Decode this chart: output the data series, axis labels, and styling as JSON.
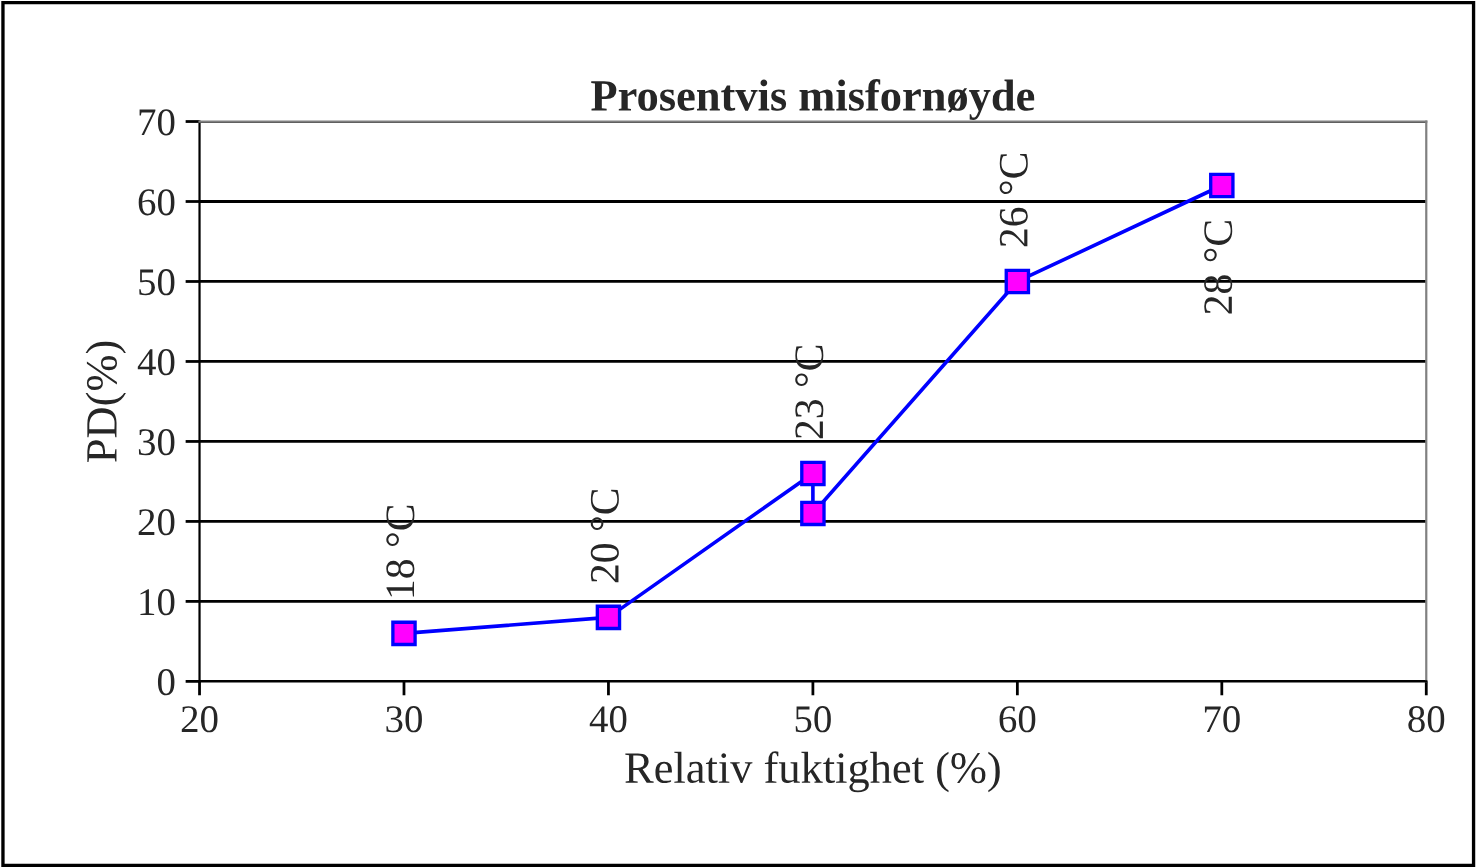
{
  "chart_data": {
    "type": "line",
    "title": "Prosentvis misfornøyde",
    "xlabel": "Relativ fuktighet (%)",
    "ylabel": "PD(%)",
    "xlim": [
      20,
      80
    ],
    "xticks": [
      20,
      30,
      40,
      50,
      60,
      70,
      80
    ],
    "ylim": [
      0,
      70
    ],
    "yticks": [
      0,
      10,
      20,
      30,
      40,
      50,
      60,
      70
    ],
    "grid": "y",
    "marker": "square",
    "line_style": "solid",
    "legend": false,
    "series": [
      {
        "color": "#0000ff",
        "x": [
          30,
          40,
          50,
          50,
          60,
          70
        ],
        "values": [
          6,
          8,
          26,
          21,
          50,
          62
        ]
      }
    ],
    "annotations": [
      {
        "text": "18 °C",
        "x": 30,
        "y": 6
      },
      {
        "text": "20 °C",
        "x": 40,
        "y": 8
      },
      {
        "text": "23 °C",
        "x": 50,
        "y": 26
      },
      {
        "text": "26 °C",
        "x": 60,
        "y": 50
      },
      {
        "text": "28 °C",
        "x": 70,
        "y": 62
      }
    ]
  }
}
